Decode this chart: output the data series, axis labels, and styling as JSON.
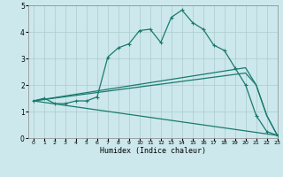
{
  "background_color": "#cce8ec",
  "grid_color": "#aacccc",
  "line_color": "#1a7a6e",
  "xlabel": "Humidex (Indice chaleur)",
  "xlim": [
    -0.5,
    23
  ],
  "ylim": [
    0,
    5
  ],
  "xticks": [
    0,
    1,
    2,
    3,
    4,
    5,
    6,
    7,
    8,
    9,
    10,
    11,
    12,
    13,
    14,
    15,
    16,
    17,
    18,
    19,
    20,
    21,
    22,
    23
  ],
  "yticks": [
    0,
    1,
    2,
    3,
    4,
    5
  ],
  "series1_x": [
    0,
    1,
    2,
    3,
    4,
    5,
    6,
    7,
    8,
    9,
    10,
    11,
    12,
    13,
    14,
    15,
    16,
    17,
    18,
    19,
    20,
    21,
    22,
    23
  ],
  "series1_y": [
    1.4,
    1.5,
    1.3,
    1.3,
    1.4,
    1.4,
    1.55,
    3.05,
    3.4,
    3.55,
    4.05,
    4.1,
    3.6,
    4.55,
    4.82,
    4.35,
    4.1,
    3.5,
    3.3,
    2.65,
    2.0,
    0.85,
    0.25,
    0.1
  ],
  "series2_x": [
    0,
    23
  ],
  "series2_y": [
    1.4,
    0.1
  ],
  "series3_x": [
    0,
    20,
    21,
    22,
    23
  ],
  "series3_y": [
    1.4,
    2.45,
    2.0,
    0.85,
    0.1
  ],
  "series4_x": [
    0,
    20,
    21,
    22,
    23
  ],
  "series4_y": [
    1.4,
    2.65,
    2.0,
    0.85,
    0.1
  ]
}
